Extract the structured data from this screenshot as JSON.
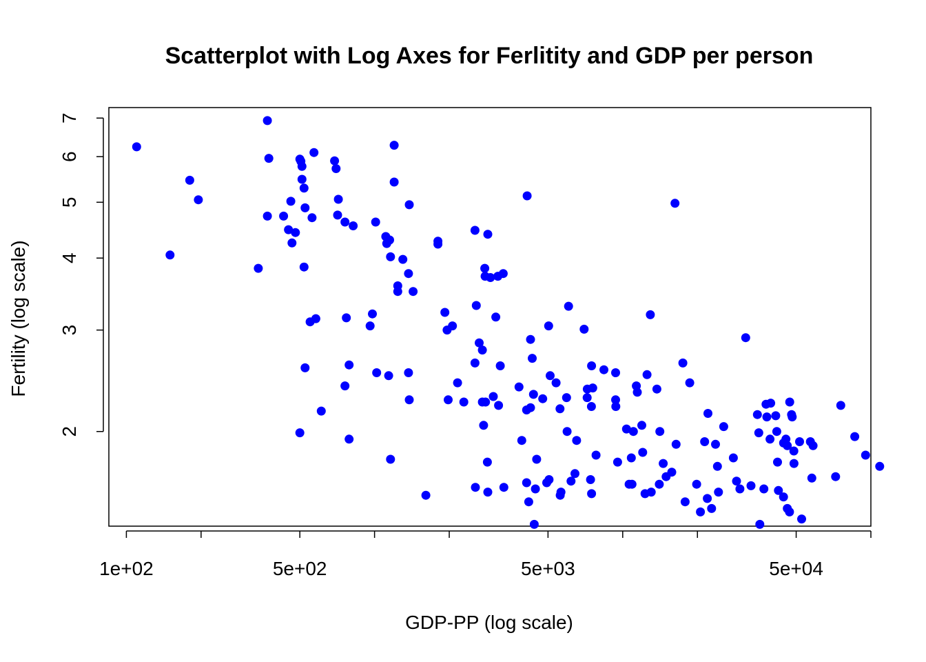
{
  "chart_data": {
    "type": "scatter",
    "title": "Scatterplot with Log Axes for Ferlitity and GDP per person",
    "xlabel": "GDP-PP (log scale)",
    "ylabel": "Fertility  (log scale)",
    "x_scale": "log",
    "y_scale": "log",
    "xlim": [
      85,
      100000
    ],
    "ylim": [
      1.37,
      7.3
    ],
    "x_ticks": [
      100,
      200,
      500,
      1000,
      2000,
      5000,
      10000,
      20000,
      50000,
      100000
    ],
    "x_tick_labels": [
      {
        "value": 100,
        "label": "1e+02"
      },
      {
        "value": 500,
        "label": "5e+02"
      },
      {
        "value": 5000,
        "label": "5e+03"
      },
      {
        "value": 50000,
        "label": "5e+04"
      }
    ],
    "y_ticks": [
      {
        "value": 2,
        "label": "2"
      },
      {
        "value": 3,
        "label": "3"
      },
      {
        "value": 4,
        "label": "4"
      },
      {
        "value": 5,
        "label": "5"
      },
      {
        "value": 6,
        "label": "6"
      },
      {
        "value": 7,
        "label": "7"
      }
    ],
    "point_color": "#0000FF",
    "grid": false,
    "points": [
      [
        110,
        6.24
      ],
      [
        150,
        4.05
      ],
      [
        180,
        5.46
      ],
      [
        195,
        5.05
      ],
      [
        340,
        3.84
      ],
      [
        370,
        6.93
      ],
      [
        375,
        5.96
      ],
      [
        370,
        4.73
      ],
      [
        430,
        4.73
      ],
      [
        450,
        4.48
      ],
      [
        460,
        5.02
      ],
      [
        465,
        4.25
      ],
      [
        480,
        4.43
      ],
      [
        500,
        5.94
      ],
      [
        505,
        5.89
      ],
      [
        510,
        5.77
      ],
      [
        510,
        5.48
      ],
      [
        520,
        5.29
      ],
      [
        525,
        4.89
      ],
      [
        520,
        3.86
      ],
      [
        525,
        2.58
      ],
      [
        500,
        1.99
      ],
      [
        550,
        3.1
      ],
      [
        560,
        4.7
      ],
      [
        570,
        6.1
      ],
      [
        580,
        3.14
      ],
      [
        610,
        2.17
      ],
      [
        690,
        5.9
      ],
      [
        700,
        5.72
      ],
      [
        710,
        4.75
      ],
      [
        715,
        5.06
      ],
      [
        760,
        4.62
      ],
      [
        770,
        3.15
      ],
      [
        790,
        1.94
      ],
      [
        790,
        2.61
      ],
      [
        760,
        2.4
      ],
      [
        820,
        4.55
      ],
      [
        960,
        3.05
      ],
      [
        980,
        3.2
      ],
      [
        1010,
        4.62
      ],
      [
        1020,
        2.53
      ],
      [
        1110,
        4.36
      ],
      [
        1120,
        4.24
      ],
      [
        1150,
        4.3
      ],
      [
        1140,
        2.5
      ],
      [
        1160,
        4.02
      ],
      [
        1160,
        1.79
      ],
      [
        1200,
        6.28
      ],
      [
        1200,
        5.42
      ],
      [
        1240,
        3.58
      ],
      [
        1240,
        3.5
      ],
      [
        1300,
        3.98
      ],
      [
        1370,
        3.76
      ],
      [
        1370,
        2.53
      ],
      [
        1380,
        4.95
      ],
      [
        1380,
        2.27
      ],
      [
        1430,
        3.5
      ],
      [
        1610,
        1.55
      ],
      [
        1800,
        4.28
      ],
      [
        1800,
        4.23
      ],
      [
        1920,
        3.22
      ],
      [
        1960,
        3.0
      ],
      [
        1980,
        2.27
      ],
      [
        2060,
        3.05
      ],
      [
        2160,
        2.43
      ],
      [
        2290,
        2.25
      ],
      [
        2540,
        4.47
      ],
      [
        2540,
        2.63
      ],
      [
        2570,
        3.31
      ],
      [
        2550,
        1.6
      ],
      [
        2640,
        2.85
      ],
      [
        2720,
        2.25
      ],
      [
        2750,
        2.05
      ],
      [
        2780,
        3.84
      ],
      [
        2790,
        3.72
      ],
      [
        2720,
        2.77
      ],
      [
        2800,
        2.25
      ],
      [
        2860,
        4.4
      ],
      [
        2850,
        1.77
      ],
      [
        2860,
        1.57
      ],
      [
        2930,
        3.7
      ],
      [
        3010,
        2.3
      ],
      [
        3080,
        3.16
      ],
      [
        3140,
        3.72
      ],
      [
        3160,
        2.22
      ],
      [
        3210,
        2.6
      ],
      [
        3300,
        3.76
      ],
      [
        3320,
        1.6
      ],
      [
        3820,
        2.39
      ],
      [
        3920,
        1.93
      ],
      [
        4100,
        1.63
      ],
      [
        4100,
        2.18
      ],
      [
        4250,
        2.89
      ],
      [
        4120,
        5.13
      ],
      [
        4320,
        2.68
      ],
      [
        4180,
        1.51
      ],
      [
        4250,
        2.2
      ],
      [
        4370,
        2.32
      ],
      [
        4450,
        1.59
      ],
      [
        4500,
        1.79
      ],
      [
        4400,
        1.38
      ],
      [
        4760,
        2.28
      ],
      [
        4940,
        1.63
      ],
      [
        5030,
        3.05
      ],
      [
        5050,
        1.65
      ],
      [
        5100,
        2.5
      ],
      [
        5390,
        2.43
      ],
      [
        5590,
        2.19
      ],
      [
        5600,
        1.55
      ],
      [
        5640,
        1.57
      ],
      [
        5940,
        2.29
      ],
      [
        5970,
        2.0
      ],
      [
        6050,
        3.3
      ],
      [
        6190,
        1.64
      ],
      [
        6420,
        1.69
      ],
      [
        6520,
        1.93
      ],
      [
        6990,
        3.01
      ],
      [
        7190,
        2.29
      ],
      [
        7200,
        2.37
      ],
      [
        7420,
        1.65
      ],
      [
        7480,
        2.21
      ],
      [
        7490,
        1.56
      ],
      [
        7490,
        2.6
      ],
      [
        7570,
        2.38
      ],
      [
        7810,
        1.82
      ],
      [
        8400,
        2.56
      ],
      [
        9360,
        2.53
      ],
      [
        9360,
        2.27
      ],
      [
        9380,
        2.21
      ],
      [
        9540,
        1.77
      ],
      [
        10360,
        2.02
      ],
      [
        10610,
        1.62
      ],
      [
        10830,
        1.8
      ],
      [
        10900,
        1.62
      ],
      [
        11040,
        2.0
      ],
      [
        11350,
        2.4
      ],
      [
        11450,
        2.34
      ],
      [
        11940,
        2.05
      ],
      [
        12040,
        1.84
      ],
      [
        12300,
        1.56
      ],
      [
        12530,
        2.51
      ],
      [
        12920,
        3.19
      ],
      [
        13030,
        1.57
      ],
      [
        13730,
        2.37
      ],
      [
        14040,
        1.62
      ],
      [
        14110,
        2.0
      ],
      [
        14560,
        1.76
      ],
      [
        14960,
        1.67
      ],
      [
        15760,
        1.7
      ],
      [
        16240,
        4.98
      ],
      [
        16410,
        1.9
      ],
      [
        17470,
        2.63
      ],
      [
        17840,
        1.51
      ],
      [
        18620,
        2.43
      ],
      [
        19850,
        1.62
      ],
      [
        20570,
        1.45
      ],
      [
        21380,
        1.92
      ],
      [
        21920,
        1.53
      ],
      [
        22050,
        2.15
      ],
      [
        22810,
        1.47
      ],
      [
        23660,
        1.9
      ],
      [
        24090,
        1.74
      ],
      [
        24310,
        1.57
      ],
      [
        25530,
        2.04
      ],
      [
        27910,
        1.8
      ],
      [
        28740,
        1.64
      ],
      [
        29660,
        1.59
      ],
      [
        31310,
        2.91
      ],
      [
        32880,
        1.61
      ],
      [
        34900,
        2.14
      ],
      [
        35340,
        1.99
      ],
      [
        35680,
        1.38
      ],
      [
        37060,
        1.59
      ],
      [
        37790,
        2.23
      ],
      [
        38080,
        2.12
      ],
      [
        39220,
        1.94
      ],
      [
        39470,
        2.24
      ],
      [
        41350,
        2.13
      ],
      [
        41770,
        2.0
      ],
      [
        42050,
        1.77
      ],
      [
        42410,
        1.58
      ],
      [
        44470,
        1.54
      ],
      [
        44480,
        1.91
      ],
      [
        45480,
        1.94
      ],
      [
        46040,
        1.89
      ],
      [
        46060,
        1.47
      ],
      [
        47000,
        1.45
      ],
      [
        47100,
        2.25
      ],
      [
        47900,
        2.14
      ],
      [
        48190,
        2.12
      ],
      [
        48920,
        1.85
      ],
      [
        49000,
        1.76
      ],
      [
        51590,
        1.92
      ],
      [
        52590,
        1.41
      ],
      [
        57050,
        1.92
      ],
      [
        57810,
        1.66
      ],
      [
        58470,
        1.89
      ],
      [
        72080,
        1.67
      ],
      [
        75640,
        2.22
      ],
      [
        86080,
        1.96
      ],
      [
        95200,
        1.82
      ],
      [
        108500,
        1.74
      ]
    ]
  }
}
